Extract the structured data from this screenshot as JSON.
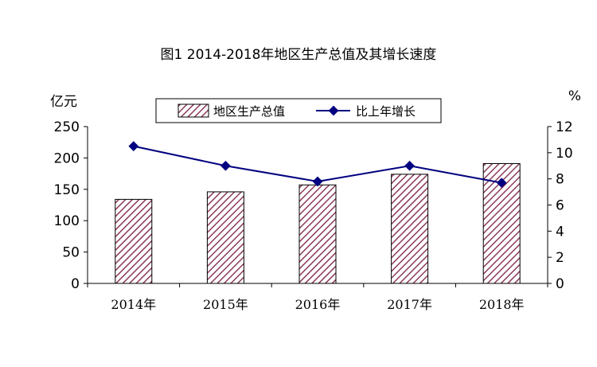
{
  "chart_data": {
    "type": "bar",
    "title": "图1  2014-2018年地区生产总值及其增长速度",
    "categories": [
      "2014年",
      "2015年",
      "2016年",
      "2017年",
      "2018年"
    ],
    "series": [
      {
        "name": "地区生产总值",
        "type": "bar",
        "axis": "left",
        "values": [
          134,
          146,
          157,
          174,
          191
        ]
      },
      {
        "name": "比上年增长",
        "type": "line",
        "axis": "right",
        "values": [
          10.5,
          9.0,
          7.8,
          9.0,
          7.7
        ]
      }
    ],
    "y_left": {
      "label": "亿元",
      "min": 0,
      "max": 250,
      "ticks": [
        0,
        50,
        100,
        150,
        200,
        250
      ]
    },
    "y_right": {
      "label": "%",
      "min": 0,
      "max": 12,
      "ticks": [
        0,
        2,
        4,
        6,
        8,
        10,
        12
      ]
    },
    "grid": false,
    "legend_position": "top-center",
    "colors": {
      "bar_hatch": "#8b3a5a",
      "line": "#000080"
    }
  }
}
